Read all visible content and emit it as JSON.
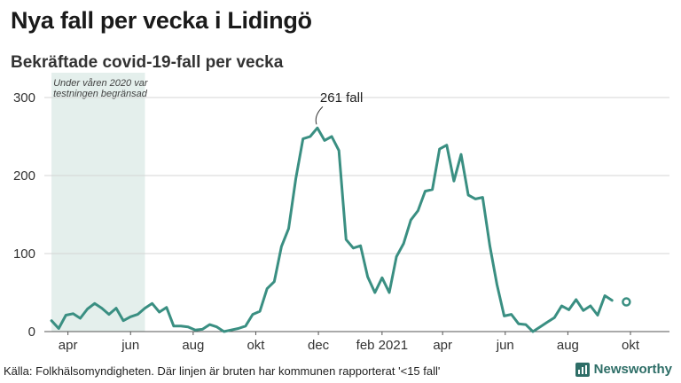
{
  "header": {
    "title": "Nya fall per vecka i Lidingö",
    "subtitle": "Bekräftade covid-19-fall per vecka"
  },
  "footer": {
    "source": "Källa: Folkhälsomyndigheten. Där linjen är bruten har kommunen rapporterat '<15 fall'",
    "brand": "Newsworthy",
    "brand_icon": "bar-chart-logo-icon"
  },
  "chart_data": {
    "type": "line",
    "title": "Nya fall per vecka i Lidingö",
    "subtitle": "Bekräftade covid-19-fall per vecka",
    "xlabel": "",
    "ylabel": "",
    "ylim": [
      0,
      300
    ],
    "yticks": [
      0,
      100,
      200,
      300
    ],
    "grid": true,
    "x_axis": {
      "range": [
        "2020-03-09",
        "2021-11-08"
      ],
      "ticks": [
        {
          "label": "apr",
          "date": "2020-04-01"
        },
        {
          "label": "jun",
          "date": "2020-06-01"
        },
        {
          "label": "aug",
          "date": "2020-08-01"
        },
        {
          "label": "okt",
          "date": "2020-10-01"
        },
        {
          "label": "dec",
          "date": "2020-12-01"
        },
        {
          "label": "feb 2021",
          "date": "2021-02-01"
        },
        {
          "label": "apr",
          "date": "2021-04-01"
        },
        {
          "label": "jun",
          "date": "2021-06-01"
        },
        {
          "label": "aug",
          "date": "2021-08-01"
        },
        {
          "label": "okt",
          "date": "2021-10-01"
        }
      ]
    },
    "highlight_region": {
      "start": "2020-03-16",
      "end": "2020-06-15",
      "label_lines": [
        "Under våren 2020 var",
        "testningen begränsad"
      ],
      "color": "#e4efec"
    },
    "annotation": {
      "text": "261 fall",
      "date": "2020-11-30",
      "value": 261
    },
    "line_color": "#3a8f82",
    "series": [
      {
        "points": [
          [
            "2020-03-16",
            14
          ],
          [
            "2020-03-23",
            4
          ],
          [
            "2020-03-30",
            21
          ],
          [
            "2020-04-06",
            23
          ],
          [
            "2020-04-13",
            17
          ],
          [
            "2020-04-20",
            29
          ],
          [
            "2020-04-27",
            36
          ],
          [
            "2020-05-04",
            30
          ],
          [
            "2020-05-11",
            22
          ],
          [
            "2020-05-18",
            30
          ],
          [
            "2020-05-25",
            14
          ],
          [
            "2020-06-01",
            19
          ],
          [
            "2020-06-08",
            22
          ],
          [
            "2020-06-15",
            30
          ],
          [
            "2020-06-22",
            36
          ],
          [
            "2020-06-29",
            25
          ],
          [
            "2020-07-06",
            31
          ],
          [
            "2020-07-13",
            7
          ],
          [
            "2020-07-20",
            7
          ],
          [
            "2020-07-27",
            6
          ],
          [
            "2020-08-03",
            2
          ],
          [
            "2020-08-10",
            3
          ],
          [
            "2020-08-17",
            9
          ],
          [
            "2020-08-24",
            6
          ],
          [
            "2020-08-31",
            0
          ],
          [
            "2020-09-07",
            2
          ],
          [
            "2020-09-14",
            4
          ],
          [
            "2020-09-21",
            7
          ],
          [
            "2020-09-28",
            22
          ],
          [
            "2020-10-05",
            26
          ],
          [
            "2020-10-12",
            55
          ],
          [
            "2020-10-19",
            64
          ],
          [
            "2020-10-26",
            109
          ],
          [
            "2020-11-02",
            132
          ],
          [
            "2020-11-09",
            196
          ],
          [
            "2020-11-16",
            247
          ],
          [
            "2020-11-23",
            250
          ],
          [
            "2020-11-30",
            261
          ],
          [
            "2020-12-07",
            245
          ],
          [
            "2020-12-14",
            250
          ],
          [
            "2020-12-21",
            232
          ],
          [
            "2020-12-28",
            118
          ],
          [
            "2021-01-04",
            107
          ],
          [
            "2021-01-11",
            110
          ],
          [
            "2021-01-18",
            70
          ],
          [
            "2021-01-25",
            50
          ],
          [
            "2021-02-01",
            69
          ],
          [
            "2021-02-08",
            50
          ],
          [
            "2021-02-15",
            96
          ],
          [
            "2021-02-22",
            113
          ],
          [
            "2021-03-01",
            143
          ],
          [
            "2021-03-08",
            155
          ],
          [
            "2021-03-15",
            180
          ],
          [
            "2021-03-22",
            182
          ],
          [
            "2021-03-29",
            234
          ],
          [
            "2021-04-05",
            239
          ],
          [
            "2021-04-12",
            193
          ],
          [
            "2021-04-19",
            227
          ],
          [
            "2021-04-26",
            175
          ],
          [
            "2021-05-03",
            170
          ],
          [
            "2021-05-10",
            172
          ],
          [
            "2021-05-17",
            110
          ],
          [
            "2021-05-24",
            60
          ],
          [
            "2021-05-31",
            20
          ],
          [
            "2021-06-07",
            22
          ],
          [
            "2021-06-14",
            10
          ],
          [
            "2021-06-21",
            9
          ],
          [
            "2021-06-28",
            0
          ],
          [
            "2021-07-05",
            6
          ],
          [
            "2021-07-12",
            12
          ],
          [
            "2021-07-19",
            18
          ],
          [
            "2021-07-26",
            33
          ],
          [
            "2021-08-02",
            28
          ],
          [
            "2021-08-09",
            41
          ],
          [
            "2021-08-16",
            27
          ],
          [
            "2021-08-23",
            33
          ],
          [
            "2021-08-30",
            21
          ],
          [
            "2021-09-06",
            46
          ],
          [
            "2021-09-13",
            40
          ],
          [
            "2021-09-20",
            null
          ],
          [
            "2021-09-27",
            38
          ]
        ]
      }
    ]
  }
}
